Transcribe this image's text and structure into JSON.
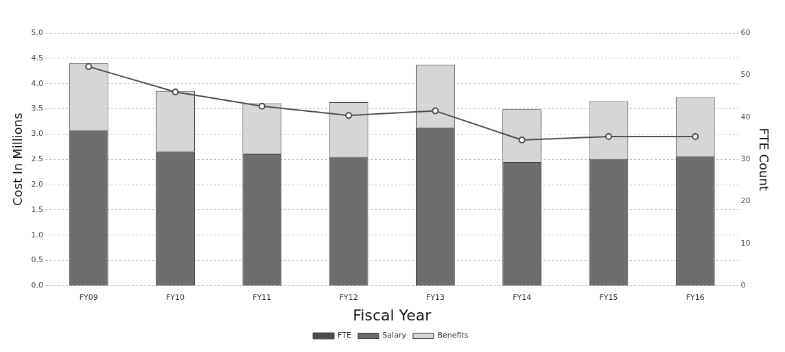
{
  "chart_data": {
    "type": "bar",
    "stacked": true,
    "xlabel": "Fiscal Year",
    "ylabel": "Cost In Millions",
    "y2label": "FTE Count",
    "categories": [
      "FY09",
      "FY10",
      "FY11",
      "FY12",
      "FY13",
      "FY14",
      "FY15",
      "FY16"
    ],
    "series": [
      {
        "name": "Salary",
        "color": "#6e6e6e",
        "values": [
          3.08,
          2.66,
          2.61,
          2.55,
          3.13,
          2.45,
          2.51,
          2.56
        ]
      },
      {
        "name": "Benefits",
        "color": "#d6d6d6",
        "values": [
          1.32,
          1.19,
          1.0,
          1.08,
          1.24,
          1.04,
          1.14,
          1.17
        ]
      },
      {
        "name": "FTE",
        "type": "line",
        "axis": "y2",
        "color": "#4d4d4d",
        "marker": "circle",
        "values": [
          52,
          46,
          42.6,
          40.4,
          41.5,
          34.6,
          35.4,
          35.4
        ]
      }
    ],
    "ylim": [
      0,
      5
    ],
    "yticks": [
      {
        "value": 0,
        "label": "0.0"
      },
      {
        "value": 0.5,
        "label": "0.5"
      },
      {
        "value": 1,
        "label": "1.0"
      },
      {
        "value": 1.5,
        "label": "1.5"
      },
      {
        "value": 2,
        "label": "2.0"
      },
      {
        "value": 2.5,
        "label": "2.5"
      },
      {
        "value": 3,
        "label": "3.0"
      },
      {
        "value": 3.5,
        "label": "3.5"
      },
      {
        "value": 4,
        "label": "4.0"
      },
      {
        "value": 4.5,
        "label": "4.5"
      },
      {
        "value": 5,
        "label": "5.0"
      }
    ],
    "y2lim": [
      0,
      60
    ],
    "y2ticks": [
      0,
      10,
      20,
      30,
      40,
      50,
      60
    ],
    "grid": "y",
    "legend": "bottom"
  }
}
